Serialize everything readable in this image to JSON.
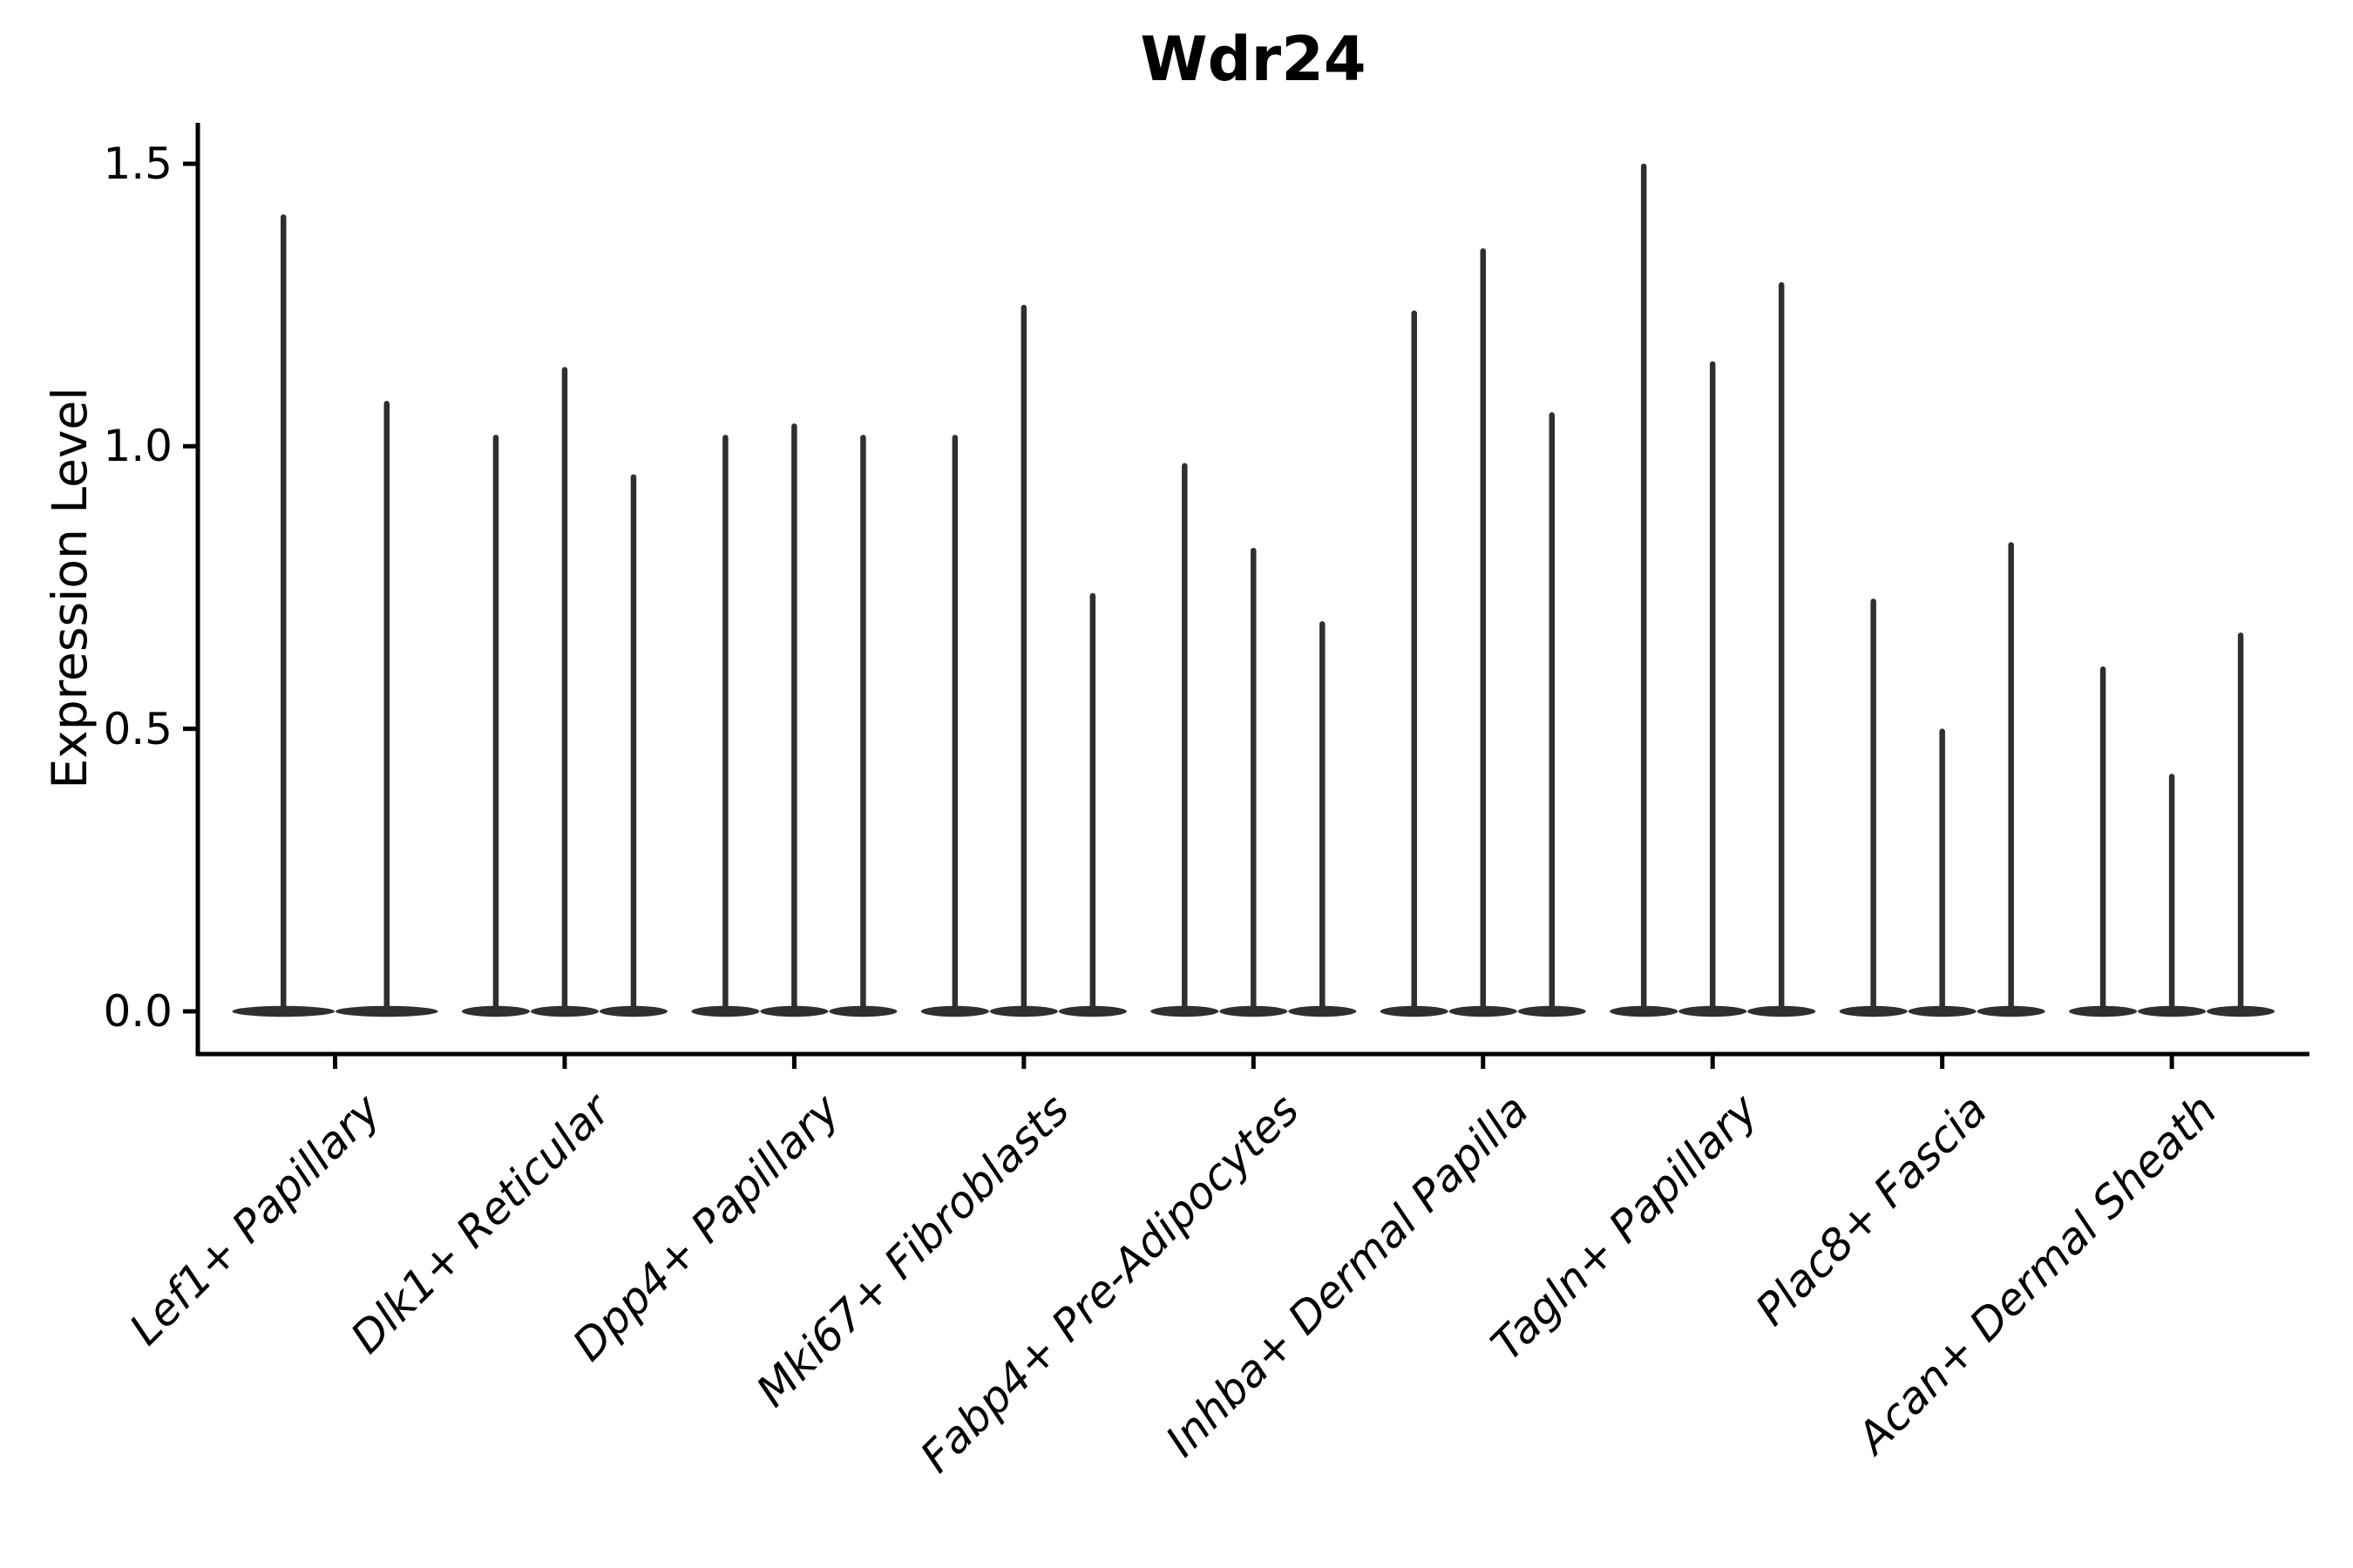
{
  "title": "Wdr24",
  "chart_data": {
    "type": "violin",
    "title": "Wdr24",
    "xlabel": "",
    "ylabel": "Expression Level",
    "ylim": [
      0,
      1.5
    ],
    "yticks": [
      0,
      0.5,
      1.0,
      1.5
    ],
    "ytick_labels": [
      "0.0",
      "0.5",
      "1.0",
      "1.5"
    ],
    "grid": false,
    "legend": "none",
    "categories": [
      "Lef1+ Papillary",
      "Dlk1+ Reticular",
      "Dpp4+ Papillary",
      "Mki67+ Fibroblasts",
      "Fabp4+ Pre-Adipocytes",
      "Inhba+ Dermal Papilla",
      "Tagln+ Papillary",
      "Plac8+ Fascia",
      "Acan+ Dermal Sheath"
    ],
    "series": [
      {
        "category": "Lef1+ Papillary",
        "violin_peaks": [
          1.41,
          1.08
        ]
      },
      {
        "category": "Dlk1+ Reticular",
        "violin_peaks": [
          1.02,
          1.14,
          0.95
        ]
      },
      {
        "category": "Dpp4+ Papillary",
        "violin_peaks": [
          1.02,
          1.04,
          1.02
        ]
      },
      {
        "category": "Mki67+ Fibroblasts",
        "violin_peaks": [
          1.02,
          1.25,
          0.74
        ]
      },
      {
        "category": "Fabp4+ Pre-Adipocytes",
        "violin_peaks": [
          0.97,
          0.82,
          0.69
        ]
      },
      {
        "category": "Inhba+ Dermal Papilla",
        "violin_peaks": [
          1.24,
          1.35,
          1.06
        ]
      },
      {
        "category": "Tagln+ Papillary",
        "violin_peaks": [
          1.5,
          1.15,
          1.29
        ]
      },
      {
        "category": "Plac8+ Fascia",
        "violin_peaks": [
          0.73,
          0.5,
          0.83
        ]
      },
      {
        "category": "Acan+ Dermal Sheath",
        "violin_peaks": [
          0.61,
          0.42,
          0.67
        ]
      }
    ],
    "violin_shape_note": "each violin collapses to a wide flat base at 0 with a thin density spike up to its peak value"
  },
  "colors": {
    "violin": "#2f2f2f",
    "axis": "#000000",
    "text": "#000000",
    "background": "#ffffff"
  }
}
